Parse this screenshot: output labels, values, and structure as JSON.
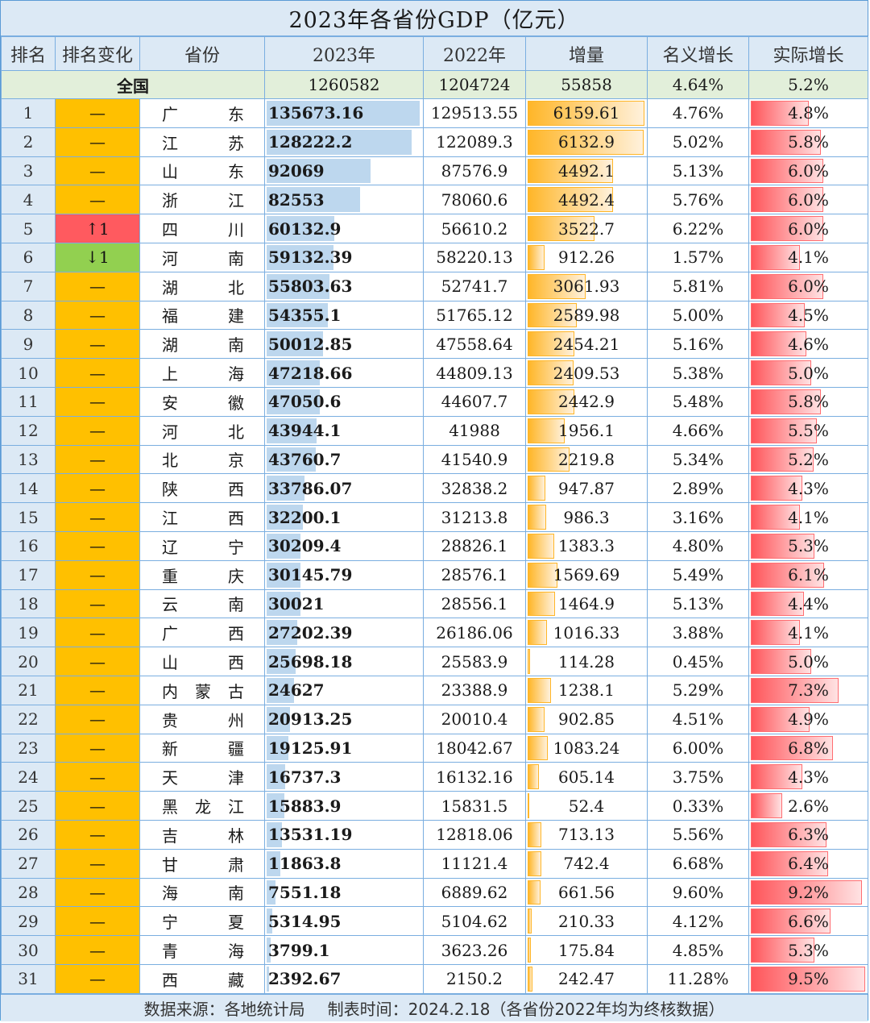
{
  "title": "2023年各省份GDP（亿元）",
  "headers": {
    "rank": "排名",
    "rank_change": "排名变化",
    "province": "省份",
    "gdp_2023": "2023年",
    "gdp_2022": "2022年",
    "increase": "增量",
    "nominal_growth": "名义增长",
    "real_growth": "实际增长"
  },
  "national": {
    "label": "全国",
    "gdp_2023": "1260582",
    "gdp_2022": "1204724",
    "increase": "55858",
    "nominal_growth": "4.64%",
    "real_growth": "5.2%"
  },
  "colors": {
    "header_bg": "#dce9f5",
    "national_bg": "#e2efda",
    "unchanged": "#ffc000",
    "rank_up": "#ff5a5f",
    "rank_down": "#92d050",
    "gdp_bar": "#bdd7ee",
    "increase_bar": "#ffb628",
    "real_growth_bar": "#ff555a"
  },
  "rows": [
    {
      "rank": "1",
      "change": "—",
      "dir": "same",
      "p1": "广",
      "p2": "",
      "p3": "东",
      "gdp23": "135673.16",
      "gdp22": "129513.55",
      "inc": "6159.61",
      "nom": "4.76%",
      "real": "4.8%"
    },
    {
      "rank": "2",
      "change": "—",
      "dir": "same",
      "p1": "江",
      "p2": "",
      "p3": "苏",
      "gdp23": "128222.2",
      "gdp22": "122089.3",
      "inc": "6132.9",
      "nom": "5.02%",
      "real": "5.8%"
    },
    {
      "rank": "3",
      "change": "—",
      "dir": "same",
      "p1": "山",
      "p2": "",
      "p3": "东",
      "gdp23": "92069",
      "gdp22": "87576.9",
      "inc": "4492.1",
      "nom": "5.13%",
      "real": "6.0%"
    },
    {
      "rank": "4",
      "change": "—",
      "dir": "same",
      "p1": "浙",
      "p2": "",
      "p3": "江",
      "gdp23": "82553",
      "gdp22": "78060.6",
      "inc": "4492.4",
      "nom": "5.76%",
      "real": "6.0%"
    },
    {
      "rank": "5",
      "change": "↑1",
      "dir": "up",
      "p1": "四",
      "p2": "",
      "p3": "川",
      "gdp23": "60132.9",
      "gdp22": "56610.2",
      "inc": "3522.7",
      "nom": "6.22%",
      "real": "6.0%"
    },
    {
      "rank": "6",
      "change": "↓1",
      "dir": "down",
      "p1": "河",
      "p2": "",
      "p3": "南",
      "gdp23": "59132.39",
      "gdp22": "58220.13",
      "inc": "912.26",
      "nom": "1.57%",
      "real": "4.1%"
    },
    {
      "rank": "7",
      "change": "—",
      "dir": "same",
      "p1": "湖",
      "p2": "",
      "p3": "北",
      "gdp23": "55803.63",
      "gdp22": "52741.7",
      "inc": "3061.93",
      "nom": "5.81%",
      "real": "6.0%"
    },
    {
      "rank": "8",
      "change": "—",
      "dir": "same",
      "p1": "福",
      "p2": "",
      "p3": "建",
      "gdp23": "54355.1",
      "gdp22": "51765.12",
      "inc": "2589.98",
      "nom": "5.00%",
      "real": "4.5%"
    },
    {
      "rank": "9",
      "change": "—",
      "dir": "same",
      "p1": "湖",
      "p2": "",
      "p3": "南",
      "gdp23": "50012.85",
      "gdp22": "47558.64",
      "inc": "2454.21",
      "nom": "5.16%",
      "real": "4.6%"
    },
    {
      "rank": "10",
      "change": "—",
      "dir": "same",
      "p1": "上",
      "p2": "",
      "p3": "海",
      "gdp23": "47218.66",
      "gdp22": "44809.13",
      "inc": "2409.53",
      "nom": "5.38%",
      "real": "5.0%"
    },
    {
      "rank": "11",
      "change": "—",
      "dir": "same",
      "p1": "安",
      "p2": "",
      "p3": "徽",
      "gdp23": "47050.6",
      "gdp22": "44607.7",
      "inc": "2442.9",
      "nom": "5.48%",
      "real": "5.8%"
    },
    {
      "rank": "12",
      "change": "—",
      "dir": "same",
      "p1": "河",
      "p2": "",
      "p3": "北",
      "gdp23": "43944.1",
      "gdp22": "41988",
      "inc": "1956.1",
      "nom": "4.66%",
      "real": "5.5%"
    },
    {
      "rank": "13",
      "change": "—",
      "dir": "same",
      "p1": "北",
      "p2": "",
      "p3": "京",
      "gdp23": "43760.7",
      "gdp22": "41540.9",
      "inc": "2219.8",
      "nom": "5.34%",
      "real": "5.2%"
    },
    {
      "rank": "14",
      "change": "—",
      "dir": "same",
      "p1": "陕",
      "p2": "",
      "p3": "西",
      "gdp23": "33786.07",
      "gdp22": "32838.2",
      "inc": "947.87",
      "nom": "2.89%",
      "real": "4.3%"
    },
    {
      "rank": "15",
      "change": "—",
      "dir": "same",
      "p1": "江",
      "p2": "",
      "p3": "西",
      "gdp23": "32200.1",
      "gdp22": "31213.8",
      "inc": "986.3",
      "nom": "3.16%",
      "real": "4.1%"
    },
    {
      "rank": "16",
      "change": "—",
      "dir": "same",
      "p1": "辽",
      "p2": "",
      "p3": "宁",
      "gdp23": "30209.4",
      "gdp22": "28826.1",
      "inc": "1383.3",
      "nom": "4.80%",
      "real": "5.3%"
    },
    {
      "rank": "17",
      "change": "—",
      "dir": "same",
      "p1": "重",
      "p2": "",
      "p3": "庆",
      "gdp23": "30145.79",
      "gdp22": "28576.1",
      "inc": "1569.69",
      "nom": "5.49%",
      "real": "6.1%"
    },
    {
      "rank": "18",
      "change": "—",
      "dir": "same",
      "p1": "云",
      "p2": "",
      "p3": "南",
      "gdp23": "30021",
      "gdp22": "28556.1",
      "inc": "1464.9",
      "nom": "5.13%",
      "real": "4.4%"
    },
    {
      "rank": "19",
      "change": "—",
      "dir": "same",
      "p1": "广",
      "p2": "",
      "p3": "西",
      "gdp23": "27202.39",
      "gdp22": "26186.06",
      "inc": "1016.33",
      "nom": "3.88%",
      "real": "4.1%"
    },
    {
      "rank": "20",
      "change": "—",
      "dir": "same",
      "p1": "山",
      "p2": "",
      "p3": "西",
      "gdp23": "25698.18",
      "gdp22": "25583.9",
      "inc": "114.28",
      "nom": "0.45%",
      "real": "5.0%"
    },
    {
      "rank": "21",
      "change": "—",
      "dir": "same",
      "p1": "内",
      "p2": "蒙",
      "p3": "古",
      "gdp23": "24627",
      "gdp22": "23388.9",
      "inc": "1238.1",
      "nom": "5.29%",
      "real": "7.3%"
    },
    {
      "rank": "22",
      "change": "—",
      "dir": "same",
      "p1": "贵",
      "p2": "",
      "p3": "州",
      "gdp23": "20913.25",
      "gdp22": "20010.4",
      "inc": "902.85",
      "nom": "4.51%",
      "real": "4.9%"
    },
    {
      "rank": "23",
      "change": "—",
      "dir": "same",
      "p1": "新",
      "p2": "",
      "p3": "疆",
      "gdp23": "19125.91",
      "gdp22": "18042.67",
      "inc": "1083.24",
      "nom": "6.00%",
      "real": "6.8%"
    },
    {
      "rank": "24",
      "change": "—",
      "dir": "same",
      "p1": "天",
      "p2": "",
      "p3": "津",
      "gdp23": "16737.3",
      "gdp22": "16132.16",
      "inc": "605.14",
      "nom": "3.75%",
      "real": "4.3%"
    },
    {
      "rank": "25",
      "change": "—",
      "dir": "same",
      "p1": "黑",
      "p2": "龙",
      "p3": "江",
      "gdp23": "15883.9",
      "gdp22": "15831.5",
      "inc": "52.4",
      "nom": "0.33%",
      "real": "2.6%"
    },
    {
      "rank": "26",
      "change": "—",
      "dir": "same",
      "p1": "吉",
      "p2": "",
      "p3": "林",
      "gdp23": "13531.19",
      "gdp22": "12818.06",
      "inc": "713.13",
      "nom": "5.56%",
      "real": "6.3%"
    },
    {
      "rank": "27",
      "change": "—",
      "dir": "same",
      "p1": "甘",
      "p2": "",
      "p3": "肃",
      "gdp23": "11863.8",
      "gdp22": "11121.4",
      "inc": "742.4",
      "nom": "6.68%",
      "real": "6.4%"
    },
    {
      "rank": "28",
      "change": "—",
      "dir": "same",
      "p1": "海",
      "p2": "",
      "p3": "南",
      "gdp23": "7551.18",
      "gdp22": "6889.62",
      "inc": "661.56",
      "nom": "9.60%",
      "real": "9.2%"
    },
    {
      "rank": "29",
      "change": "—",
      "dir": "same",
      "p1": "宁",
      "p2": "",
      "p3": "夏",
      "gdp23": "5314.95",
      "gdp22": "5104.62",
      "inc": "210.33",
      "nom": "4.12%",
      "real": "6.6%"
    },
    {
      "rank": "30",
      "change": "—",
      "dir": "same",
      "p1": "青",
      "p2": "",
      "p3": "海",
      "gdp23": "3799.1",
      "gdp22": "3623.26",
      "inc": "175.84",
      "nom": "4.85%",
      "real": "5.3%"
    },
    {
      "rank": "31",
      "change": "—",
      "dir": "same",
      "p1": "西",
      "p2": "",
      "p3": "藏",
      "gdp23": "2392.67",
      "gdp22": "2150.2",
      "inc": "242.47",
      "nom": "11.28%",
      "real": "9.5%"
    }
  ],
  "footer": {
    "source": "数据来源：各地统计局",
    "date": "制表时间：2024.2.18（各省份2022年均为终核数据）"
  }
}
